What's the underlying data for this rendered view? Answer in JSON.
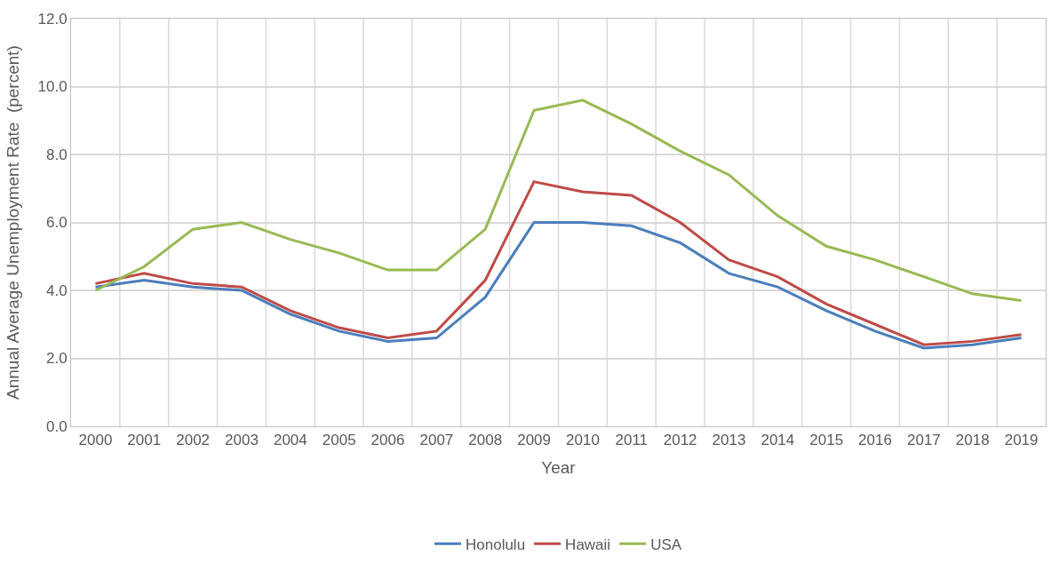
{
  "chart_data": {
    "type": "line",
    "xlabel": "Year",
    "ylabel": "Annual Average Unemployment Rate  (percent)",
    "categories": [
      "2000",
      "2001",
      "2002",
      "2003",
      "2004",
      "2005",
      "2006",
      "2007",
      "2008",
      "2009",
      "2010",
      "2011",
      "2012",
      "2013",
      "2014",
      "2015",
      "2016",
      "2017",
      "2018",
      "2019"
    ],
    "series": [
      {
        "name": "Honolulu",
        "color": "#4a7ebb",
        "values": [
          4.1,
          4.3,
          4.1,
          4.0,
          3.3,
          2.8,
          2.5,
          2.6,
          3.8,
          6.0,
          6.0,
          5.9,
          5.4,
          4.5,
          4.1,
          3.4,
          2.8,
          2.3,
          2.4,
          2.6
        ]
      },
      {
        "name": "Hawaii",
        "color": "#be4b48",
        "values": [
          4.2,
          4.5,
          4.2,
          4.1,
          3.4,
          2.9,
          2.6,
          2.8,
          4.3,
          7.2,
          6.9,
          6.8,
          6.0,
          4.9,
          4.4,
          3.6,
          3.0,
          2.4,
          2.5,
          2.7
        ]
      },
      {
        "name": "USA",
        "color": "#98b954",
        "values": [
          4.0,
          4.7,
          5.8,
          6.0,
          5.5,
          5.1,
          4.6,
          4.6,
          5.8,
          9.3,
          9.6,
          8.9,
          8.1,
          7.4,
          6.2,
          5.3,
          4.9,
          4.4,
          3.9,
          3.7
        ]
      }
    ],
    "ylim": [
      0,
      12
    ],
    "yticks": [
      {
        "value": 0,
        "label": "0.0"
      },
      {
        "value": 2,
        "label": "2.0"
      },
      {
        "value": 4,
        "label": "4.0"
      },
      {
        "value": 6,
        "label": "6.0"
      },
      {
        "value": 8,
        "label": "8.0"
      },
      {
        "value": 10,
        "label": "10.0"
      },
      {
        "value": 12,
        "label": "12.0"
      }
    ],
    "grid": true,
    "legend": "bottom",
    "marker": "none",
    "line_style": "solid"
  }
}
